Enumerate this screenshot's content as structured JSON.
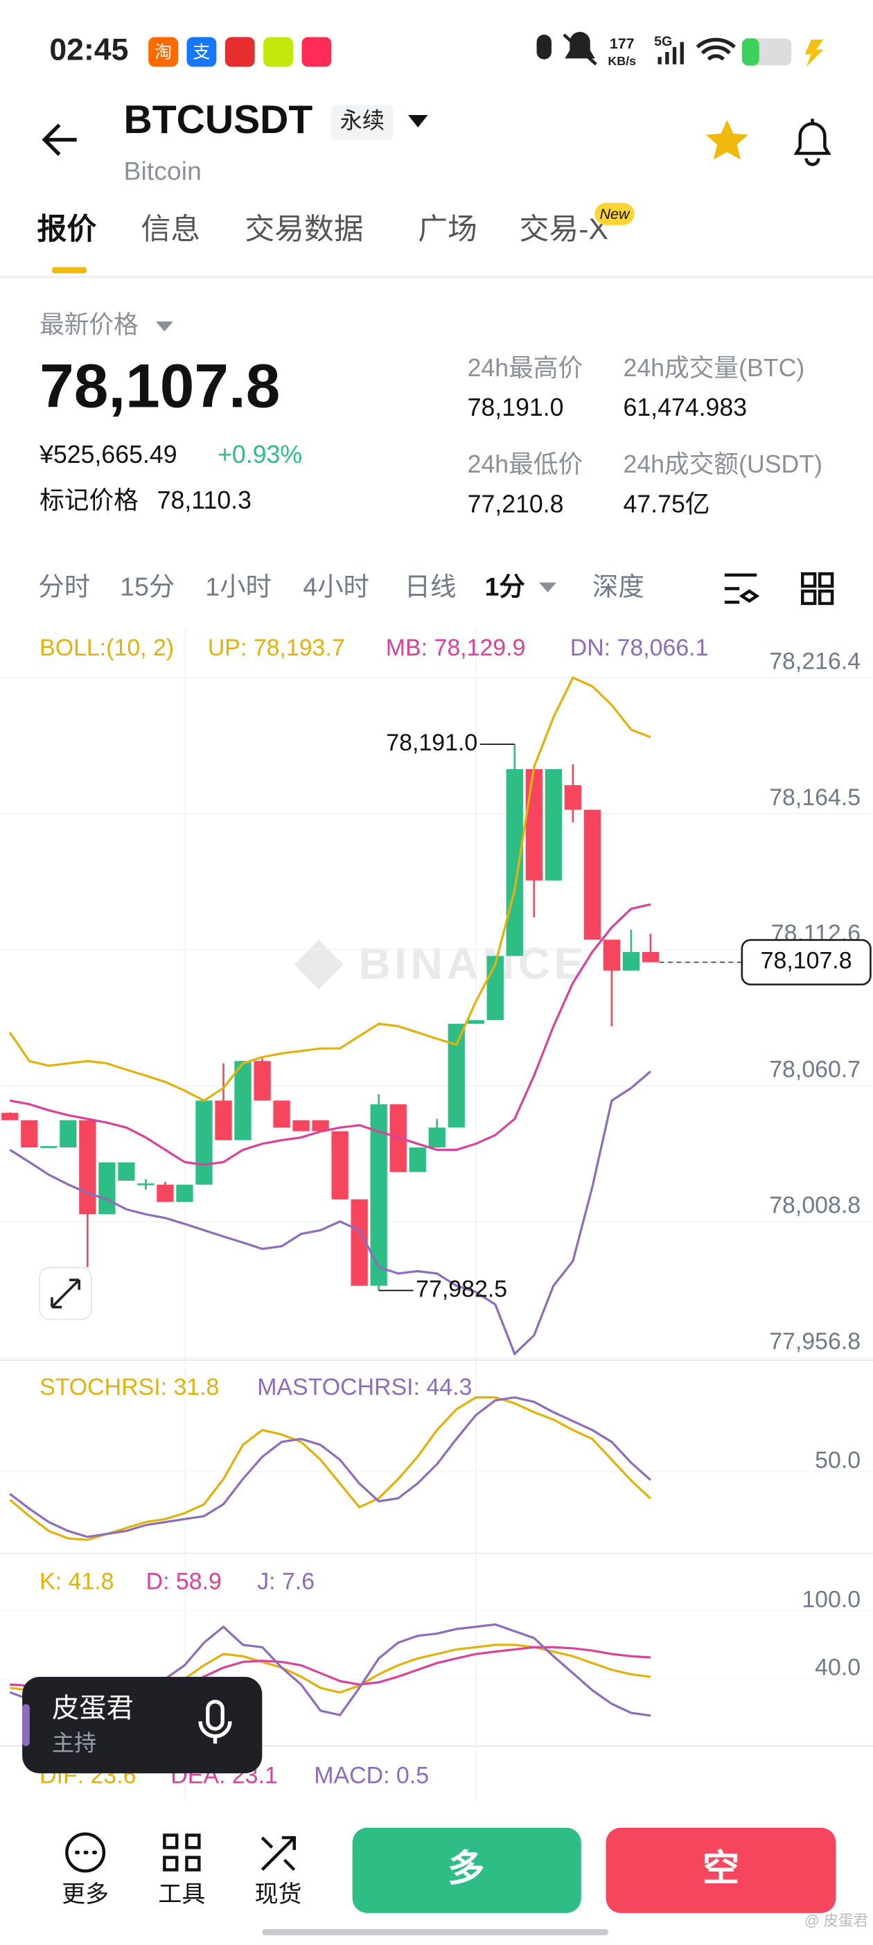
{
  "status_bar": {
    "time": "02:45",
    "apps": [
      "淘",
      "支"
    ],
    "net_speed": "177",
    "net_unit": "KB/s",
    "network": "5G"
  },
  "header": {
    "symbol": "BTCUSDT",
    "contract": "永续",
    "name": "Bitcoin"
  },
  "tabs": [
    "报价",
    "信息",
    "交易数据",
    "广场",
    "交易-X"
  ],
  "tab_badge": "New",
  "price": {
    "label": "最新价格",
    "last": "78,107.8",
    "cny": "¥525,665.49",
    "change": "+0.93%",
    "mark_label": "标记价格",
    "mark": "78,110.3"
  },
  "stats": [
    {
      "label": "24h最高价",
      "value": "78,191.0"
    },
    {
      "label": "24h成交量(BTC)",
      "value": "61,474.983"
    },
    {
      "label": "24h最低价",
      "value": "77,210.8"
    },
    {
      "label": "24h成交额(USDT)",
      "value": "47.75亿"
    }
  ],
  "intervals": [
    "分时",
    "15分",
    "1小时",
    "4小时",
    "日线",
    "1分",
    "深度"
  ],
  "watermark": "BINANCE",
  "chart_data": [
    {
      "type": "candlestick",
      "title": "BOLL:(10, 2)",
      "up_color": "#2ebd85",
      "down_color": "#f6465d",
      "open": [
        78050.3,
        78047.5,
        78037.1,
        78037.1,
        78047.5,
        78011.6,
        78024.4,
        78022.9,
        78022.9,
        78016.3,
        78022.9,
        78055.0,
        78039.9,
        78070.1,
        78055.0,
        78047.5,
        78047.5,
        78043.3,
        78017.3,
        77984.3,
        78053.6,
        78027.7,
        78037.1,
        78044.7,
        78084.3,
        78085.7,
        78110.2,
        78181.5,
        78139.0,
        78175.4,
        78166.0,
        78116.4,
        78104.6,
        78111.7
      ],
      "high": [
        78050.5,
        78047.5,
        78037.6,
        78047.5,
        78047.5,
        78031.4,
        78031.4,
        78025.0,
        78024.0,
        78022.9,
        78055.0,
        78069.2,
        78070.1,
        78071.0,
        78055.0,
        78047.5,
        78047.5,
        78043.3,
        78017.3,
        78057.4,
        78053.6,
        78037.1,
        78048.0,
        78084.3,
        78085.7,
        78110.2,
        78191.0,
        78181.5,
        78181.5,
        78183.4,
        78166.0,
        78116.4,
        78120.2,
        78118.7
      ],
      "low": [
        78047.5,
        78037.1,
        78037.1,
        78037.1,
        77991.4,
        78011.6,
        78024.4,
        78021.0,
        78016.3,
        78016.3,
        78022.9,
        78039.9,
        78039.9,
        78055.0,
        78044.7,
        78043.3,
        78043.3,
        78017.3,
        77984.3,
        77982.5,
        78027.7,
        78027.7,
        78037.1,
        78044.7,
        78084.3,
        78085.7,
        78110.2,
        78124.9,
        78139.0,
        78161.2,
        78116.4,
        78083.4,
        78104.6,
        78107.8
      ],
      "close": [
        78047.5,
        78037.1,
        78037.6,
        78047.5,
        78011.6,
        78031.4,
        78031.4,
        78023.4,
        78016.3,
        78022.9,
        78055.0,
        78039.9,
        78070.1,
        78055.0,
        78044.7,
        78043.3,
        78043.3,
        78017.3,
        77984.3,
        78053.6,
        78027.7,
        78037.1,
        78044.7,
        78084.3,
        78085.7,
        78110.2,
        78181.5,
        78139.0,
        78181.5,
        78166.0,
        78116.4,
        78104.6,
        78111.7,
        78107.8
      ],
      "series": [
        {
          "name": "UP: 78,193.7",
          "color": "#e2b20c",
          "values": [
            78081.0,
            78070.1,
            78068.3,
            78069.2,
            78070.1,
            78069.2,
            78066.8,
            78064.5,
            78062.1,
            78058.8,
            78055.0,
            78059.8,
            78069.2,
            78071.6,
            78073.0,
            78073.9,
            78074.9,
            78074.9,
            78079.6,
            78084.3,
            78083.4,
            78081.0,
            78078.6,
            78076.3,
            78092.8,
            78106.9,
            78135.3,
            78182.4,
            78201.3,
            78216.4,
            78213.1,
            78206.0,
            78196.6,
            78193.7
          ]
        },
        {
          "name": "MB: 78,129.9",
          "color": "#d9429c",
          "values": [
            78055.0,
            78053.6,
            78051.3,
            78049.4,
            78048.0,
            78046.6,
            78044.7,
            78040.9,
            78036.2,
            78031.5,
            78030.5,
            78031.5,
            78036.2,
            78038.5,
            78039.9,
            78040.9,
            78043.2,
            78044.7,
            78045.6,
            78043.2,
            78040.9,
            78038.5,
            78036.2,
            78036.2,
            78038.5,
            78041.8,
            78048.0,
            78064.5,
            78083.4,
            78099.9,
            78111.7,
            78121.1,
            78128.2,
            78129.9
          ]
        },
        {
          "name": "DN: 78,066.1",
          "color": "#8e6cbc",
          "values": [
            78036.2,
            78031.5,
            78026.7,
            78023.0,
            78019.7,
            78017.3,
            78013.5,
            78011.6,
            78010.2,
            78007.9,
            78005.5,
            78003.1,
            78000.8,
            77998.4,
            77999.4,
            78004.1,
            78005.5,
            78008.8,
            78005.5,
            77991.4,
            77989.0,
            77989.9,
            77989.0,
            77984.3,
            77981.9,
            77977.2,
            77958.3,
            77965.4,
            77984.3,
            77993.7,
            78022.0,
            78055.0,
            78059.8,
            78066.1
          ]
        }
      ],
      "ylim": [
        77956.8,
        78235.3
      ],
      "yticks": [
        {
          "value": 78216.4,
          "label": "78,216.4"
        },
        {
          "value": 78164.5,
          "label": "78,164.5"
        },
        {
          "value": 78112.6,
          "label": "78,112.6"
        },
        {
          "value": 78060.7,
          "label": "78,060.7"
        },
        {
          "value": 78008.8,
          "label": "78,008.8"
        },
        {
          "value": 77956.8,
          "label": "77,956.8"
        }
      ],
      "last_price": {
        "value": 78107.8,
        "label": "78,107.8"
      },
      "max_label": "78,191.0",
      "min_label": "77,982.5"
    },
    {
      "type": "line",
      "series": [
        {
          "name": "STOCHRSI: 31.8",
          "color": "#e2b20c",
          "values": [
            31,
            20,
            10,
            5,
            4,
            8,
            12,
            16,
            18,
            22,
            28,
            45,
            68,
            78,
            75,
            70,
            58,
            42,
            26,
            32,
            45,
            60,
            78,
            92,
            100,
            100,
            96,
            90,
            85,
            78,
            72,
            58,
            44,
            31.8
          ]
        },
        {
          "name": "MASTOCHRSI: 44.3",
          "color": "#8e6cbc",
          "values": [
            35,
            25,
            16,
            10,
            6,
            8,
            10,
            14,
            16,
            18,
            20,
            28,
            45,
            60,
            70,
            72,
            68,
            58,
            42,
            30,
            32,
            42,
            55,
            72,
            88,
            98,
            100,
            97,
            90,
            84,
            78,
            70,
            56,
            44.3
          ]
        }
      ],
      "ylim": [
        0,
        100
      ],
      "yticks": [
        {
          "value": 50,
          "label": "50.0"
        }
      ]
    },
    {
      "type": "line",
      "series": [
        {
          "name": "K: 41.8",
          "color": "#e2b20c",
          "values": [
            32,
            30,
            27,
            24,
            22,
            21,
            24,
            28,
            33,
            40,
            52,
            62,
            60,
            55,
            50,
            42,
            32,
            28,
            34,
            44,
            52,
            58,
            62,
            66,
            68,
            70,
            70,
            68,
            64,
            60,
            54,
            48,
            44,
            41.8
          ]
        },
        {
          "name": "D: 58.9",
          "color": "#d9429c",
          "values": [
            35,
            34,
            32,
            30,
            28,
            26,
            26,
            27,
            30,
            34,
            42,
            50,
            55,
            56,
            55,
            52,
            45,
            38,
            35,
            37,
            42,
            48,
            54,
            58,
            62,
            64,
            66,
            68,
            68,
            67,
            65,
            62,
            60,
            58.9
          ]
        },
        {
          "name": "J: 7.6",
          "color": "#8e6cbc",
          "values": [
            28,
            22,
            16,
            12,
            10,
            12,
            18,
            28,
            40,
            52,
            72,
            86,
            70,
            68,
            50,
            35,
            12,
            8,
            32,
            58,
            72,
            78,
            80,
            84,
            86,
            88,
            82,
            76,
            60,
            45,
            30,
            18,
            10,
            7.6
          ]
        }
      ],
      "ylim": [
        -15,
        140
      ],
      "yticks": [
        {
          "value": 40,
          "label": "40.0"
        },
        {
          "value": 100,
          "label": "100.0"
        }
      ]
    }
  ],
  "macd": [
    "DIF: 23.6",
    "DEA: 23.1",
    "MACD: 0.5"
  ],
  "host": {
    "name": "皮蛋君",
    "role": "主持"
  },
  "nav": [
    "更多",
    "工具",
    "现货"
  ],
  "actions": [
    "多",
    "空"
  ],
  "credit": "@ 皮蛋君"
}
